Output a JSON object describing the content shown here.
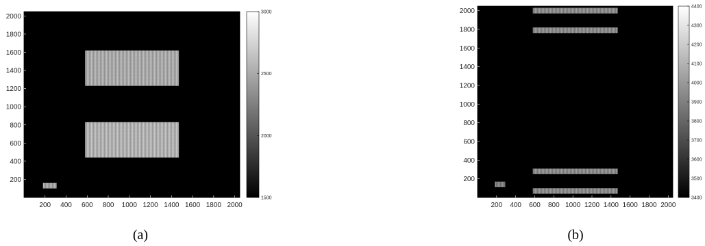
{
  "chart_data": [
    {
      "type": "heatmap",
      "panel_label": "(a)",
      "xlim": [
        0,
        2048
      ],
      "ylim": [
        0,
        2048
      ],
      "xticks": [
        200,
        400,
        600,
        800,
        1000,
        1200,
        1400,
        1600,
        1800,
        2000
      ],
      "yticks": [
        200,
        400,
        600,
        800,
        1000,
        1200,
        1400,
        1600,
        1800,
        2000
      ],
      "background_value": 1500,
      "colorbar": {
        "min": 1500,
        "max": 3000,
        "ticks": [
          1500,
          2000,
          2500,
          3000
        ],
        "colormap": "gray"
      },
      "regions": [
        {
          "x": [
            580,
            1470
          ],
          "y": [
            1230,
            1620
          ],
          "value": 2600
        },
        {
          "x": [
            580,
            1470
          ],
          "y": [
            440,
            830
          ],
          "value": 2650
        },
        {
          "x": [
            180,
            310
          ],
          "y": [
            100,
            160
          ],
          "value": 2550
        }
      ]
    },
    {
      "type": "heatmap",
      "panel_label": "(b)",
      "xlim": [
        0,
        2048
      ],
      "ylim": [
        0,
        2048
      ],
      "xticks": [
        200,
        400,
        600,
        800,
        1000,
        1200,
        1400,
        1600,
        1800,
        2000
      ],
      "yticks": [
        200,
        400,
        600,
        800,
        1000,
        1200,
        1400,
        1600,
        1800,
        2000
      ],
      "background_value": 3400,
      "colorbar": {
        "min": 3400,
        "max": 4400,
        "ticks": [
          3400,
          3500,
          3600,
          3700,
          3800,
          3900,
          4000,
          4100,
          4200,
          4300,
          4400
        ],
        "colormap": "gray"
      },
      "regions": [
        {
          "x": [
            580,
            1470
          ],
          "y": [
            1970,
            2030
          ],
          "value": 4000
        },
        {
          "x": [
            580,
            1470
          ],
          "y": [
            1760,
            1820
          ],
          "value": 4000
        },
        {
          "x": [
            580,
            1470
          ],
          "y": [
            250,
            310
          ],
          "value": 4000
        },
        {
          "x": [
            580,
            1470
          ],
          "y": [
            40,
            100
          ],
          "value": 4000
        },
        {
          "x": [
            180,
            290
          ],
          "y": [
            110,
            170
          ],
          "value": 3950
        }
      ]
    }
  ]
}
